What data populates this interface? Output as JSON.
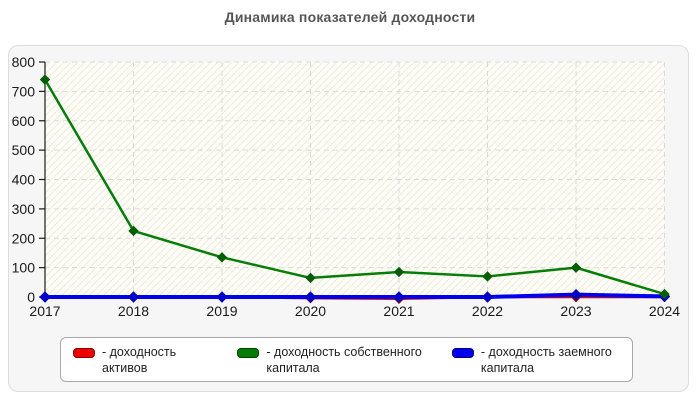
{
  "title": "Динамика показателей доходности",
  "chart_data": {
    "type": "line",
    "title": "Динамика показателей доходности",
    "categories": [
      "2017",
      "2018",
      "2019",
      "2020",
      "2021",
      "2022",
      "2023",
      "2024"
    ],
    "series": [
      {
        "name": "доходность активов",
        "color": "#dd0000",
        "marker_color": "#8b0000",
        "values": [
          0,
          0,
          0,
          -4,
          -6,
          0,
          0,
          0
        ]
      },
      {
        "name": "доходность собственного капитала",
        "color": "#067d06",
        "marker_color": "#055e05",
        "values": [
          740,
          225,
          135,
          65,
          85,
          70,
          100,
          10
        ]
      },
      {
        "name": "доходность заемного капитала",
        "color": "#0000ee",
        "marker_color": "#0000c8",
        "values": [
          0,
          0,
          0,
          0,
          0,
          0,
          8,
          2
        ]
      }
    ],
    "xlabel": "",
    "ylabel": "",
    "ylim": [
      0,
      800
    ],
    "y_tick_step": 100,
    "grid": "dashed",
    "legend_position": "bottom",
    "plot_background": "#fffef4",
    "hatch_color": "#e9e9e9",
    "gridline_color": "#d9d9d9",
    "axis_color": "#1a1a1a",
    "tick_label_color": "#1a1a1a"
  },
  "legend": {
    "items": [
      {
        "label": "- доходность активов",
        "color": "#ee0000",
        "border": "#8b0000"
      },
      {
        "label": "- доходность собственного капитала",
        "color": "#067d06",
        "border": "#033f03"
      },
      {
        "label": "- доходность заемного капитала",
        "color": "#0000ee",
        "border": "#000080"
      }
    ]
  }
}
